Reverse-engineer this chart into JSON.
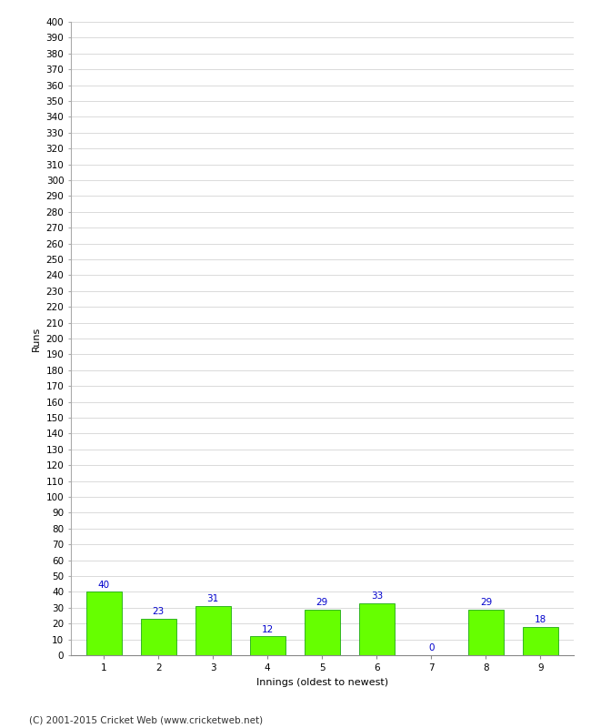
{
  "xlabel": "Innings (oldest to newest)",
  "ylabel": "Runs",
  "categories": [
    "1",
    "2",
    "3",
    "4",
    "5",
    "6",
    "7",
    "8",
    "9"
  ],
  "values": [
    40,
    23,
    31,
    12,
    29,
    33,
    0,
    29,
    18
  ],
  "bar_color": "#66ff00",
  "bar_edge_color": "#009900",
  "label_color": "#0000cc",
  "background_color": "#ffffff",
  "plot_bg_color": "#ffffff",
  "ylim": [
    0,
    400
  ],
  "footer_text": "(C) 2001-2015 Cricket Web (www.cricketweb.net)",
  "label_fontsize": 7.5,
  "axis_label_fontsize": 8,
  "tick_fontsize": 7.5,
  "footer_fontsize": 7.5,
  "grid_color": "#cccccc"
}
